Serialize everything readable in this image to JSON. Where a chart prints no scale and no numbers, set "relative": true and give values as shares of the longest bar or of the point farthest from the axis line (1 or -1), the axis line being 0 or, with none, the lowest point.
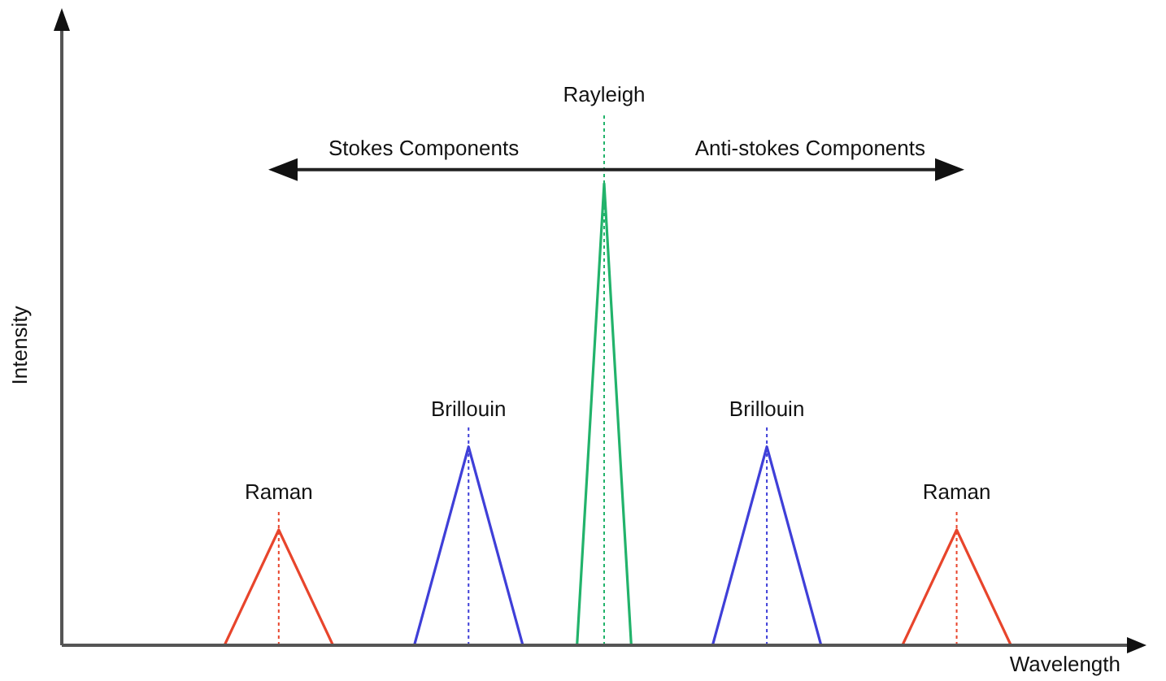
{
  "chart_data": {
    "type": "line",
    "xlabel": "Wavelength",
    "ylabel": "Intensity",
    "relative": true,
    "tick_labels": false,
    "grid": false,
    "legend": false,
    "marker": "none",
    "line_style": "solid",
    "categories": [
      null,
      null,
      null,
      null,
      null,
      null,
      null,
      null,
      null,
      null,
      null,
      null,
      null,
      null,
      null,
      null,
      null,
      null,
      null,
      null,
      null,
      null,
      null,
      null,
      null,
      null,
      null,
      null,
      null,
      null,
      null,
      null,
      null,
      null,
      null,
      null,
      null,
      null,
      null,
      null,
      null
    ],
    "annotations": [
      "Stokes Components",
      "Anti-stokes Components"
    ],
    "series": [
      {
        "name": "Raman",
        "color": "#e8452c",
        "values": [
          null,
          null,
          null,
          null,
          null,
          null,
          0,
          null,
          0.25,
          null,
          0,
          null,
          null,
          null,
          null,
          null,
          null,
          null,
          null,
          null,
          null,
          null,
          null,
          null,
          null,
          null,
          null,
          null,
          null,
          null,
          null,
          null,
          null,
          null,
          null,
          null,
          null,
          null,
          null,
          null,
          null
        ]
      },
      {
        "name": "Brillouin",
        "color": "#3f3fd8",
        "values": [
          null,
          null,
          null,
          null,
          null,
          null,
          null,
          null,
          null,
          null,
          null,
          null,
          null,
          0,
          null,
          0.43,
          null,
          0,
          null,
          null,
          null,
          null,
          null,
          null,
          null,
          null,
          null,
          null,
          null,
          null,
          null,
          null,
          null,
          null,
          null,
          null,
          null,
          null,
          null,
          null,
          null
        ]
      },
      {
        "name": "Rayleigh",
        "color": "#22b36b",
        "values": [
          null,
          null,
          null,
          null,
          null,
          null,
          null,
          null,
          null,
          null,
          null,
          null,
          null,
          null,
          null,
          null,
          null,
          null,
          null,
          0,
          1,
          0,
          null,
          null,
          null,
          null,
          null,
          null,
          null,
          null,
          null,
          null,
          null,
          null,
          null,
          null,
          null,
          null,
          null,
          null,
          null
        ]
      },
      {
        "name": "Brillouin",
        "color": "#3f3fd8",
        "values": [
          null,
          null,
          null,
          null,
          null,
          null,
          null,
          null,
          null,
          null,
          null,
          null,
          null,
          null,
          null,
          null,
          null,
          null,
          null,
          null,
          null,
          null,
          null,
          null,
          0,
          null,
          0.43,
          null,
          0,
          null,
          null,
          null,
          null,
          null,
          null,
          null,
          null,
          null,
          null,
          null,
          null
        ]
      },
      {
        "name": "Raman",
        "color": "#e8452c",
        "values": [
          null,
          null,
          null,
          null,
          null,
          null,
          null,
          null,
          null,
          null,
          null,
          null,
          null,
          null,
          null,
          null,
          null,
          null,
          null,
          null,
          null,
          null,
          null,
          null,
          null,
          null,
          null,
          null,
          null,
          null,
          null,
          0,
          null,
          0.25,
          null,
          0,
          null,
          null,
          null,
          null,
          null
        ]
      }
    ]
  }
}
